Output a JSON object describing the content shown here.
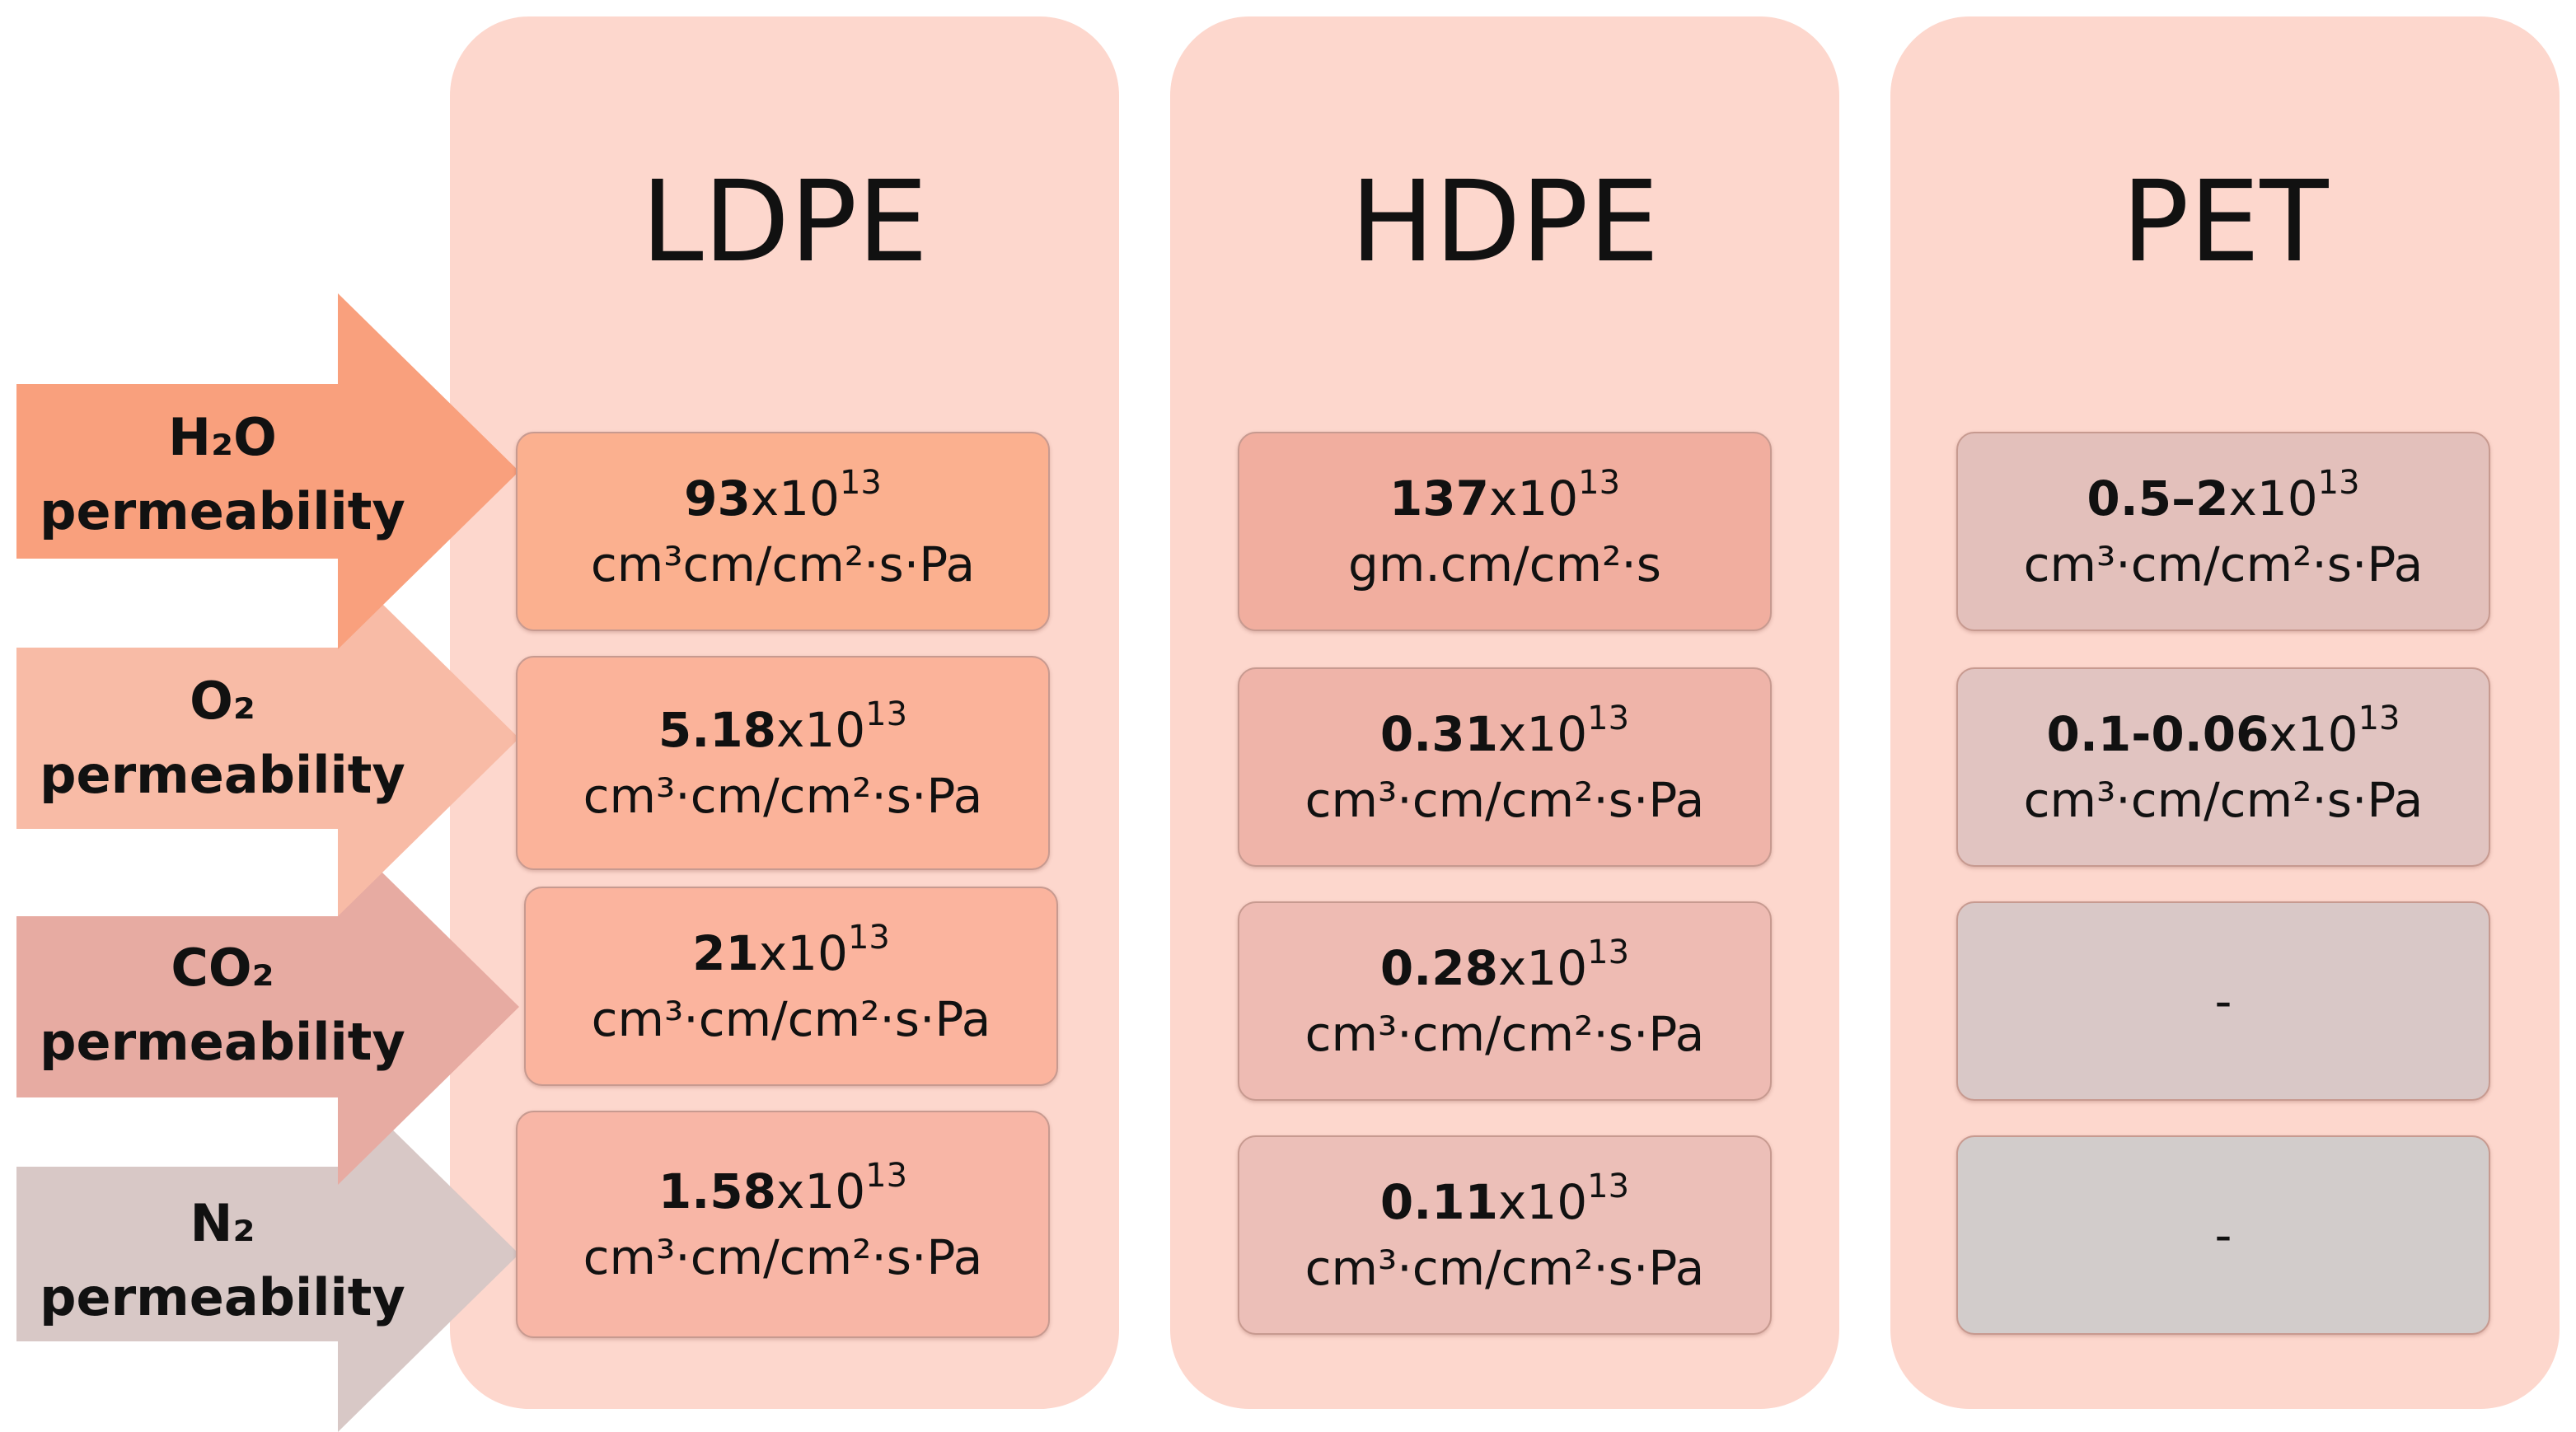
{
  "columns": [
    {
      "title": "LDPE",
      "color": "#fdd7cd"
    },
    {
      "title": "HDPE",
      "color": "#fdd7cd"
    },
    {
      "title": "PET",
      "color": "#fdd7cd"
    }
  ],
  "rows": [
    {
      "gas": "H₂O",
      "label": "permeability",
      "color": "#f9a07d"
    },
    {
      "gas": "O₂",
      "label": "permeability",
      "color": "#f8bba6"
    },
    {
      "gas": "CO₂",
      "label": "permeability",
      "color": "#e7aba2"
    },
    {
      "gas": "N₂",
      "label": "permeability",
      "color": "#d8c8c6"
    }
  ],
  "cells": {
    "ldpe": [
      {
        "value": "93",
        "mult": "x10",
        "exp": "13",
        "unit": "cm³cm/cm²·s·Pa"
      },
      {
        "value": "5.18",
        "mult": "x10",
        "exp": "13",
        "unit": "cm³·cm/cm²·s·Pa"
      },
      {
        "value": "21",
        "mult": "x10",
        "exp": "13",
        "unit": "cm³·cm/cm²·s·Pa"
      },
      {
        "value": "1.58",
        "mult": "x10",
        "exp": "13",
        "unit": "cm³·cm/cm²·s·Pa"
      }
    ],
    "hdpe": [
      {
        "value": "137",
        "mult": "x10",
        "exp": "13",
        "unit": "gm.cm/cm²·s"
      },
      {
        "value": "0.31",
        "mult": "x10",
        "exp": "13",
        "unit": "cm³·cm/cm²·s·Pa"
      },
      {
        "value": "0.28",
        "mult": "x10",
        "exp": "13",
        "unit": "cm³·cm/cm²·s·Pa"
      },
      {
        "value": "0.11",
        "mult": "x10",
        "exp": "13",
        "unit": "cm³·cm/cm²·s·Pa"
      }
    ],
    "pet": [
      {
        "value": "0.5–2",
        "mult": "x10",
        "exp": "13",
        "unit": "cm³·cm/cm²·s·Pa"
      },
      {
        "value": "0.1-0.06",
        "mult": "x10",
        "exp": "13",
        "unit": "cm³·cm/cm²·s·Pa"
      },
      {
        "empty": "-"
      },
      {
        "empty": "-"
      }
    ]
  },
  "cell_colors": {
    "ldpe": [
      "#fbb08f",
      "#fbb39a",
      "#fbb49e",
      "#f8b6a6"
    ],
    "hdpe": [
      "#f1ae9f",
      "#efb4a9",
      "#eebbb3",
      "#ecbfb8"
    ],
    "pet": [
      "#e3c0bb",
      "#e1c4c1",
      "#d9c8c7",
      "#d2cccb"
    ]
  }
}
